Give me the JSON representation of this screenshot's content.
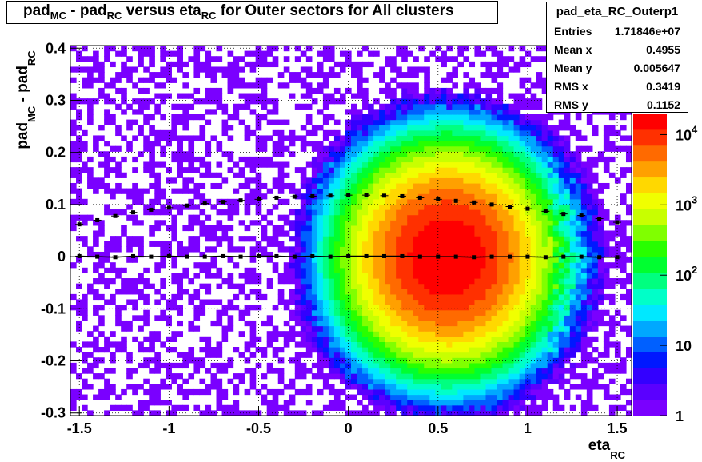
{
  "title": {
    "parts": [
      {
        "t": "pad",
        "sub": "MC"
      },
      {
        "t": " - pad",
        "sub": "RC"
      },
      {
        "t": " versus eta",
        "sub": "RC"
      },
      {
        "t": " for Outer sectors for All clusters",
        "sub": ""
      }
    ]
  },
  "stats": {
    "name": "pad_eta_RC_Outerp1",
    "rows": [
      {
        "label": "Entries",
        "value": "1.71846e+07"
      },
      {
        "label": "Mean x",
        "value": "0.4955"
      },
      {
        "label": "Mean y",
        "value": "0.005647"
      },
      {
        "label": "RMS x",
        "value": "0.3419"
      },
      {
        "label": "RMS y",
        "value": "0.1152"
      }
    ]
  },
  "chart_data": {
    "type": "heatmap",
    "title": "pad_MC - pad_RC versus eta_RC for Outer sectors for All clusters",
    "xlabel": "eta_RC",
    "ylabel": "pad_MC - pad_RC",
    "xlim": [
      -1.55,
      1.58
    ],
    "ylim": [
      -0.305,
      0.405
    ],
    "x_ticks": [
      -1.5,
      -1,
      -0.5,
      0,
      0.5,
      1,
      1.5
    ],
    "y_ticks": [
      -0.3,
      -0.2,
      -0.1,
      0,
      0.1,
      0.2,
      0.3,
      0.4
    ],
    "colorbar": {
      "scale": "log",
      "range": [
        1,
        20000
      ],
      "tick_labels": [
        "1",
        "10",
        "10^2",
        "10^3",
        "10^4"
      ]
    },
    "grid": true,
    "density_peak": {
      "x": 0.55,
      "y": 0.0
    },
    "profile_mean": {
      "x": [
        -1.5,
        -1.4,
        -1.3,
        -1.2,
        -1.1,
        -1.0,
        -0.9,
        -0.8,
        -0.7,
        -0.6,
        -0.5,
        -0.4,
        -0.3,
        -0.2,
        -0.1,
        0.0,
        0.1,
        0.2,
        0.3,
        0.4,
        0.5,
        0.6,
        0.7,
        0.8,
        0.9,
        1.0,
        1.1,
        1.2,
        1.3,
        1.4,
        1.5
      ],
      "y": [
        0.001,
        0.0,
        -0.001,
        0.001,
        0.0,
        0.001,
        0.0,
        0.0,
        0.001,
        0.0,
        0.001,
        0.001,
        0.0,
        0.001,
        0.0,
        0.001,
        0.001,
        0.001,
        0.001,
        0.0,
        0.0,
        0.0,
        -0.001,
        0.0,
        0.0,
        0.0,
        -0.001,
        0.0,
        0.0,
        -0.001,
        -0.001
      ]
    },
    "profile_rms": {
      "x": [
        -1.5,
        -1.4,
        -1.3,
        -1.2,
        -1.1,
        -1.0,
        -0.9,
        -0.8,
        -0.7,
        -0.6,
        -0.5,
        -0.4,
        -0.3,
        -0.2,
        -0.1,
        0.0,
        0.1,
        0.2,
        0.3,
        0.4,
        0.5,
        0.6,
        0.7,
        0.8,
        0.9,
        1.0,
        1.1,
        1.2,
        1.3,
        1.4,
        1.5
      ],
      "y": [
        0.062,
        0.07,
        0.078,
        0.085,
        0.09,
        0.094,
        0.098,
        0.102,
        0.105,
        0.108,
        0.11,
        0.113,
        0.115,
        0.116,
        0.117,
        0.118,
        0.118,
        0.117,
        0.116,
        0.113,
        0.11,
        0.107,
        0.104,
        0.1,
        0.096,
        0.092,
        0.087,
        0.082,
        0.079,
        0.073,
        0.066
      ]
    }
  }
}
